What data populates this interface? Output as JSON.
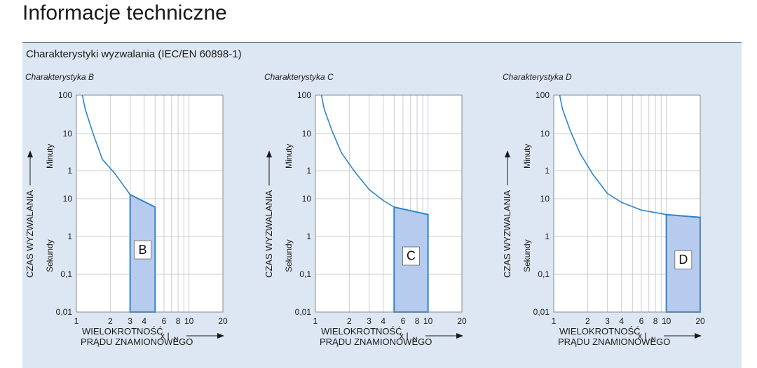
{
  "page": {
    "title": "Informacje techniczne"
  },
  "section": {
    "title": "Charakterystyki wyzwalania (IEC/EN 60898-1)"
  },
  "axes": {
    "y_title": "CZAS WYZWALANIA",
    "y_minutes": "Minuty",
    "y_seconds": "Sekundy",
    "x_title_line1": "WIELOKROTNOŚĆ",
    "x_title_line2": "PRĄDU ZNAMIONOWEGO",
    "x_unit": "x I",
    "x_unit_sub": "N"
  },
  "chart_data": [
    {
      "type": "line",
      "title": "Charakterystyka B",
      "xlabel": "WIELOKROTNOŚĆ PRĄDU ZNAMIONOWEGO x IN",
      "ylabel": "CZAS WYZWALANIA",
      "xscale": "log",
      "xlim": [
        1,
        20
      ],
      "x_ticks": [
        1,
        2,
        3,
        4,
        6,
        8,
        10,
        20
      ],
      "y_ticks_minutes": [
        "100",
        "10",
        "1"
      ],
      "y_ticks_seconds": [
        "10",
        "1",
        "0,1",
        "0,01"
      ],
      "curve": [
        [
          1.13,
          6000
        ],
        [
          1.2,
          2500
        ],
        [
          1.4,
          600
        ],
        [
          1.7,
          120
        ],
        [
          2.2,
          50
        ],
        [
          3,
          13
        ]
      ],
      "zone": {
        "label": "B",
        "x_from": 3,
        "x_to": 5,
        "t_top_left": 13,
        "t_top_right": 6,
        "t_bottom": 0.01
      },
      "zone_color": "#b6cbee"
    },
    {
      "type": "line",
      "title": "Charakterystyka C",
      "xlabel": "WIELOKROTNOŚĆ PRĄDU ZNAMIONOWEGO x IN",
      "ylabel": "CZAS WYZWALANIA",
      "xscale": "log",
      "xlim": [
        1,
        20
      ],
      "x_ticks": [
        1,
        2,
        3,
        4,
        6,
        8,
        10,
        20
      ],
      "y_ticks_minutes": [
        "100",
        "10",
        "1"
      ],
      "y_ticks_seconds": [
        "10",
        "1",
        "0,1",
        "0,01"
      ],
      "curve": [
        [
          1.13,
          6000
        ],
        [
          1.2,
          2500
        ],
        [
          1.4,
          700
        ],
        [
          1.7,
          180
        ],
        [
          2.2,
          60
        ],
        [
          3,
          18
        ],
        [
          4,
          9
        ],
        [
          5,
          6
        ]
      ],
      "zone": {
        "label": "C",
        "x_from": 5,
        "x_to": 10,
        "t_top_left": 6,
        "t_top_right": 3.8,
        "t_bottom": 0.01
      },
      "zone_color": "#b6cbee"
    },
    {
      "type": "line",
      "title": "Charakterystyka D",
      "xlabel": "WIELOKROTNOŚĆ PRĄDU ZNAMIONOWEGO x IN",
      "ylabel": "CZAS WYZWALANIA",
      "xscale": "log",
      "xlim": [
        1,
        20
      ],
      "x_ticks": [
        1,
        2,
        3,
        4,
        6,
        8,
        10,
        20
      ],
      "y_ticks_minutes": [
        "100",
        "10",
        "1"
      ],
      "y_ticks_seconds": [
        "10",
        "1",
        "0,1",
        "0,01"
      ],
      "curve": [
        [
          1.13,
          6000
        ],
        [
          1.2,
          2500
        ],
        [
          1.4,
          700
        ],
        [
          1.7,
          180
        ],
        [
          2.2,
          50
        ],
        [
          3,
          14
        ],
        [
          4,
          8
        ],
        [
          6,
          5
        ],
        [
          10,
          3.8
        ]
      ],
      "zone": {
        "label": "D",
        "x_from": 10,
        "x_to": 20,
        "t_top_left": 3.8,
        "t_top_right": 3.2,
        "t_bottom": 0.01
      },
      "zone_color": "#b6cbee"
    }
  ],
  "colors": {
    "curve": "#2e86c8",
    "grid": "#c8cccf",
    "plot_bg": "#ffffff",
    "panel_bg": "#dde7f3"
  }
}
